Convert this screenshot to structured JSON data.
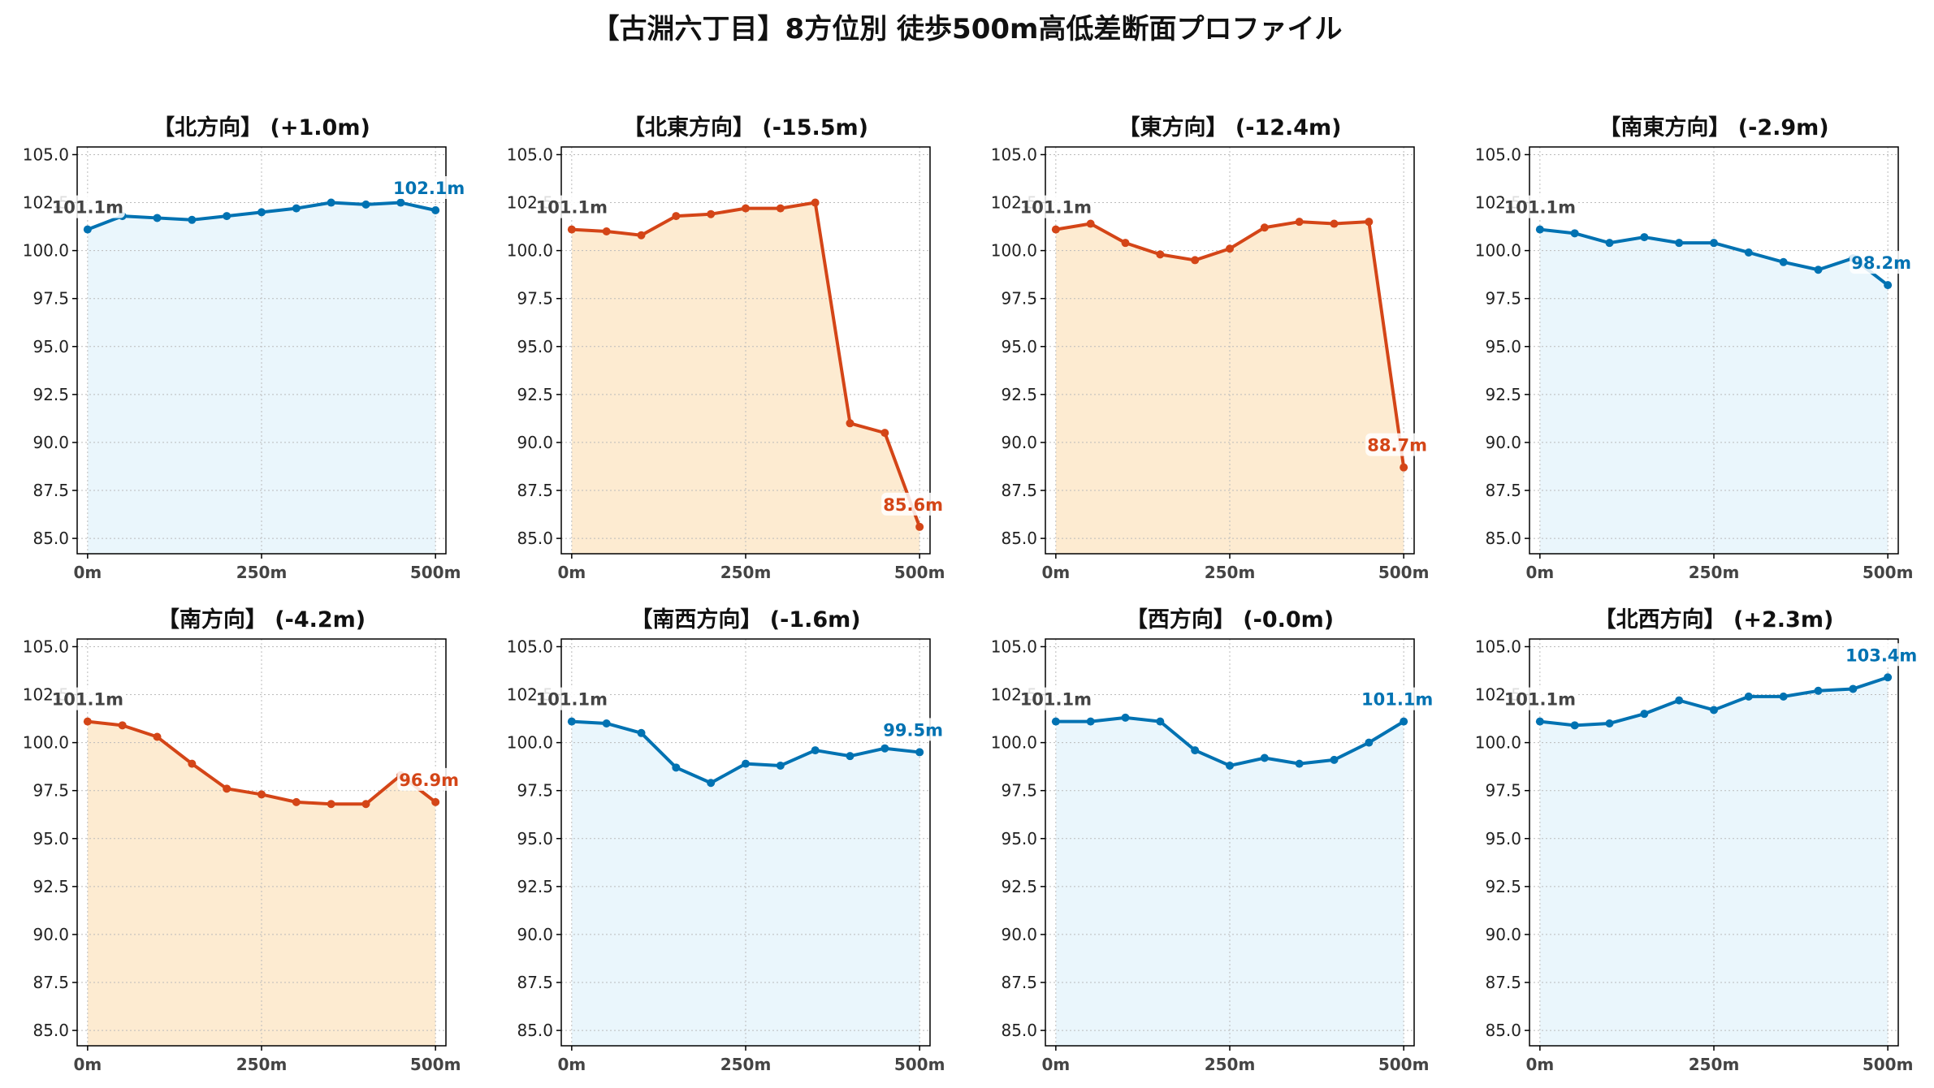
{
  "title": "【古淵六丁目】8方位別 徒歩500m高低差断面プロファイル",
  "colors": {
    "up": "#0072B2",
    "down": "#D44517",
    "fill_up": "#EAF6FC",
    "fill_down": "#FDEBD1",
    "start_label": "#444444",
    "grid": "#BBBBBB"
  },
  "axes": {
    "ylim": [
      84.2,
      105.4
    ],
    "yticks": [
      "85.0",
      "87.5",
      "90.0",
      "92.5",
      "95.0",
      "97.5",
      "100.0",
      "102.5",
      "105.0"
    ],
    "xlim": [
      -15,
      515
    ],
    "xticks": [
      {
        "v": 0,
        "label": "0m"
      },
      {
        "v": 250,
        "label": "250m"
      },
      {
        "v": 500,
        "label": "500m"
      }
    ],
    "grid": true
  },
  "chart_data": [
    {
      "type": "line",
      "title": "【北方向】 (+1.0m)",
      "trend": "up",
      "start_label": "101.1m",
      "end_label": "102.1m",
      "x": [
        0,
        50,
        100,
        150,
        200,
        250,
        300,
        350,
        400,
        450,
        500
      ],
      "y": [
        101.1,
        101.8,
        101.7,
        101.6,
        101.8,
        102.0,
        102.2,
        102.5,
        102.4,
        102.5,
        102.1
      ]
    },
    {
      "type": "line",
      "title": "【北東方向】 (-15.5m)",
      "trend": "down",
      "start_label": "101.1m",
      "end_label": "85.6m",
      "x": [
        0,
        50,
        100,
        150,
        200,
        250,
        300,
        350,
        400,
        450,
        500
      ],
      "y": [
        101.1,
        101.0,
        100.8,
        101.8,
        101.9,
        102.2,
        102.2,
        102.5,
        91.0,
        90.5,
        85.6
      ]
    },
    {
      "type": "line",
      "title": "【東方向】 (-12.4m)",
      "trend": "down",
      "start_label": "101.1m",
      "end_label": "88.7m",
      "x": [
        0,
        50,
        100,
        150,
        200,
        250,
        300,
        350,
        400,
        450,
        500
      ],
      "y": [
        101.1,
        101.4,
        100.4,
        99.8,
        99.5,
        100.1,
        101.2,
        101.5,
        101.4,
        101.5,
        88.7
      ]
    },
    {
      "type": "line",
      "title": "【南東方向】 (-2.9m)",
      "trend": "up",
      "start_label": "101.1m",
      "end_label": "98.2m",
      "x": [
        0,
        50,
        100,
        150,
        200,
        250,
        300,
        350,
        400,
        450,
        500
      ],
      "y": [
        101.1,
        100.9,
        100.4,
        100.7,
        100.4,
        100.4,
        99.9,
        99.4,
        99.0,
        99.6,
        98.2
      ]
    },
    {
      "type": "line",
      "title": "【南方向】 (-4.2m)",
      "trend": "down",
      "start_label": "101.1m",
      "end_label": "96.9m",
      "x": [
        0,
        50,
        100,
        150,
        200,
        250,
        300,
        350,
        400,
        450,
        500
      ],
      "y": [
        101.1,
        100.9,
        100.3,
        98.9,
        97.6,
        97.3,
        96.9,
        96.8,
        96.8,
        98.3,
        96.9
      ]
    },
    {
      "type": "line",
      "title": "【南西方向】 (-1.6m)",
      "trend": "up",
      "start_label": "101.1m",
      "end_label": "99.5m",
      "x": [
        0,
        50,
        100,
        150,
        200,
        250,
        300,
        350,
        400,
        450,
        500
      ],
      "y": [
        101.1,
        101.0,
        100.5,
        98.7,
        97.9,
        98.9,
        98.8,
        99.6,
        99.3,
        99.7,
        99.5
      ]
    },
    {
      "type": "line",
      "title": "【西方向】 (-0.0m)",
      "trend": "up",
      "start_label": "101.1m",
      "end_label": "101.1m",
      "x": [
        0,
        50,
        100,
        150,
        200,
        250,
        300,
        350,
        400,
        450,
        500
      ],
      "y": [
        101.1,
        101.1,
        101.3,
        101.1,
        99.6,
        98.8,
        99.2,
        98.9,
        99.1,
        100.0,
        101.1
      ]
    },
    {
      "type": "line",
      "title": "【北西方向】 (+2.3m)",
      "trend": "up",
      "start_label": "101.1m",
      "end_label": "103.4m",
      "x": [
        0,
        50,
        100,
        150,
        200,
        250,
        300,
        350,
        400,
        450,
        500
      ],
      "y": [
        101.1,
        100.9,
        101.0,
        101.5,
        102.2,
        101.7,
        102.4,
        102.4,
        102.7,
        102.8,
        103.4
      ]
    }
  ]
}
